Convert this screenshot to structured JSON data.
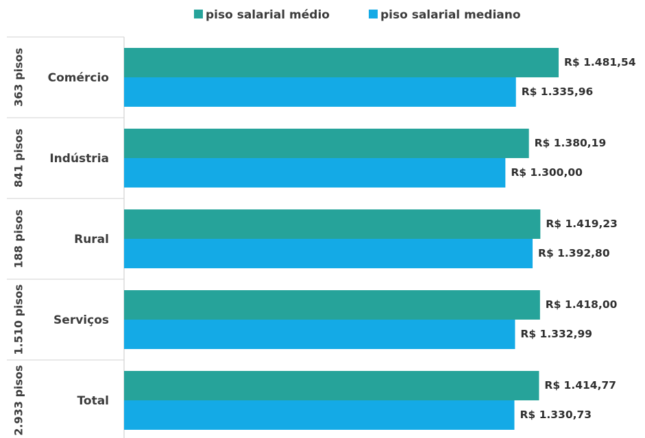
{
  "legend": [
    {
      "label": "piso salarial médio",
      "color": "#26a39a"
    },
    {
      "label": "piso salarial mediano",
      "color": "#14aae6"
    }
  ],
  "chart_data": {
    "type": "bar",
    "orientation": "horizontal",
    "categories": [
      "Comércio",
      "Indústria",
      "Rural",
      "Serviços",
      "Total"
    ],
    "groups": [
      "363 pisos",
      "841 pisos",
      "188 pisos",
      "1.510 pisos",
      "2.933 pisos"
    ],
    "series": [
      {
        "name": "piso salarial médio",
        "values": [
          1481.54,
          1380.19,
          1419.23,
          1418.0,
          1414.77
        ],
        "labels": [
          "R$ 1.481,54",
          "R$ 1.380,19",
          "R$ 1.419,23",
          "R$ 1.418,00",
          "R$ 1.414,77"
        ]
      },
      {
        "name": "piso salarial mediano",
        "values": [
          1335.96,
          1300.0,
          1392.8,
          1332.99,
          1330.73
        ],
        "labels": [
          "R$ 1.335,96",
          "R$ 1.300,00",
          "R$ 1.392,80",
          "R$ 1.332,99",
          "R$ 1.330,73"
        ]
      }
    ],
    "legend_position": "top-center",
    "grid": false
  }
}
